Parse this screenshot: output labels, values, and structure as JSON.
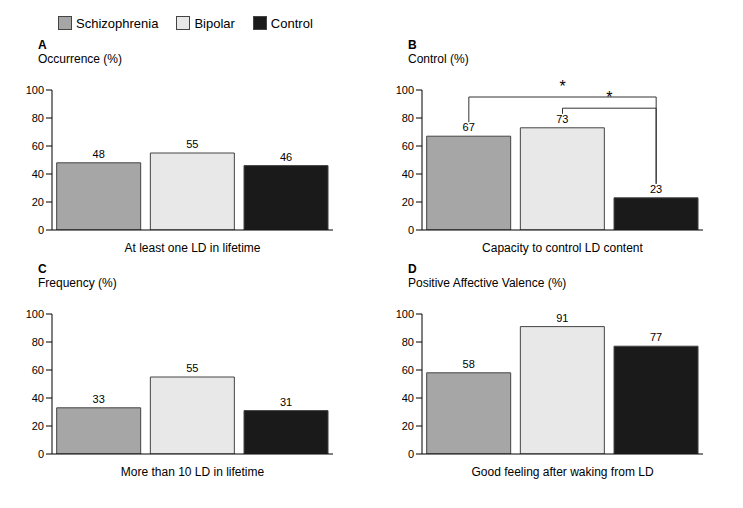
{
  "chart_data": [
    {
      "type": "bar",
      "title": "A",
      "y_label": "Occurrence (%)",
      "x_label": "At least one LD in lifetime",
      "categories": [
        "Schizophrenia",
        "Bipolar",
        "Control"
      ],
      "values": [
        48,
        55,
        46
      ],
      "colors": [
        "#a6a6a6",
        "#e8e8e8",
        "#1a1a1a"
      ],
      "ylim": [
        0,
        100
      ],
      "yticks": [
        0,
        20,
        40,
        60,
        80,
        100
      ],
      "data_labels": true,
      "tick_labels": "y",
      "legend": "top"
    },
    {
      "type": "bar",
      "title": "B",
      "y_label": "Control (%)",
      "x_label": "Capacity to control LD content",
      "categories": [
        "Schizophrenia",
        "Bipolar",
        "Control"
      ],
      "values": [
        67,
        73,
        23
      ],
      "colors": [
        "#a6a6a6",
        "#e8e8e8",
        "#1a1a1a"
      ],
      "ylim": [
        0,
        100
      ],
      "yticks": [
        0,
        20,
        40,
        60,
        80,
        100
      ],
      "data_labels": true,
      "tick_labels": "y",
      "annotations": [
        {
          "text": "*",
          "from": "Schizophrenia",
          "to": "Control"
        },
        {
          "text": "*",
          "from": "Bipolar",
          "to": "Control"
        }
      ]
    },
    {
      "type": "bar",
      "title": "C",
      "y_label": "Frequency (%)",
      "x_label": "More than 10 LD in lifetime",
      "categories": [
        "Schizophrenia",
        "Bipolar",
        "Control"
      ],
      "values": [
        33,
        55,
        31
      ],
      "colors": [
        "#a6a6a6",
        "#e8e8e8",
        "#1a1a1a"
      ],
      "ylim": [
        0,
        100
      ],
      "yticks": [
        0,
        20,
        40,
        60,
        80,
        100
      ],
      "data_labels": true,
      "tick_labels": "y"
    },
    {
      "type": "bar",
      "title": "D",
      "y_label": "Positive Affective Valence (%)",
      "x_label": "Good feeling after waking from LD",
      "categories": [
        "Schizophrenia",
        "Bipolar",
        "Control"
      ],
      "values": [
        58,
        91,
        77
      ],
      "colors": [
        "#a6a6a6",
        "#e8e8e8",
        "#1a1a1a"
      ],
      "ylim": [
        0,
        100
      ],
      "yticks": [
        0,
        20,
        40,
        60,
        80,
        100
      ],
      "data_labels": true,
      "tick_labels": "y"
    }
  ]
}
